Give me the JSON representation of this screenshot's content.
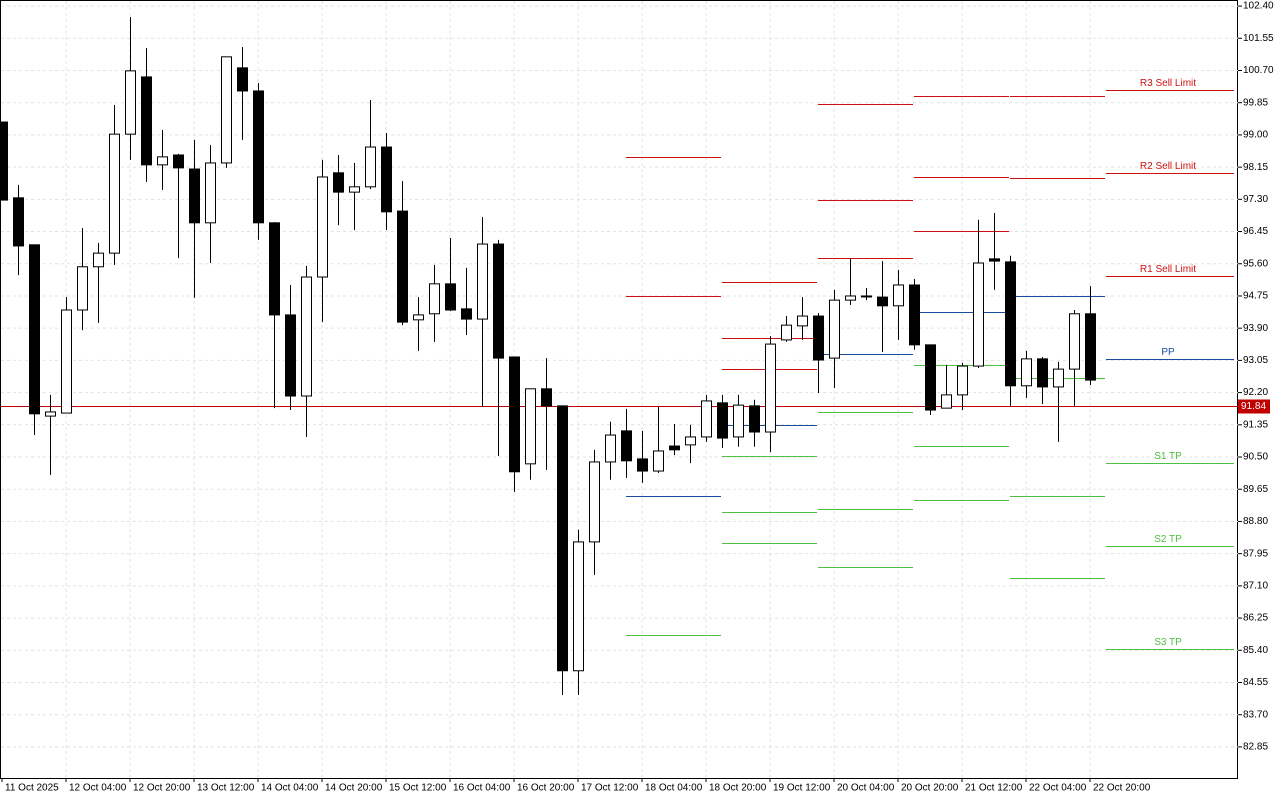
{
  "chart_data": {
    "type": "candlestick",
    "categories": [
      "11 Oct 2025",
      null,
      null,
      null,
      "12 Oct 04:00",
      null,
      null,
      null,
      "12 Oct 20:00",
      null,
      null,
      null,
      "13 Oct 12:00",
      null,
      null,
      null,
      "14 Oct 04:00",
      null,
      null,
      null,
      "14 Oct 20:00",
      null,
      null,
      null,
      "15 Oct 12:00",
      null,
      null,
      null,
      "16 Oct 04:00",
      null,
      null,
      null,
      "16 Oct 20:00",
      null,
      null,
      null,
      "17 Oct 12:00",
      null,
      null,
      null,
      "18 Oct 04:00",
      null,
      null,
      null,
      "18 Oct 20:00",
      null,
      null,
      null,
      "19 Oct 12:00",
      null,
      null,
      null,
      "20 Oct 04:00",
      null,
      null,
      null,
      "20 Oct 20:00",
      null,
      null,
      null,
      "21 Oct 12:00",
      null,
      null,
      null,
      "22 Oct 04:00",
      null,
      null,
      null,
      "22 Oct 20:00"
    ],
    "open": [
      99.34,
      97.34,
      96.1,
      91.58,
      91.66,
      94.38,
      95.52,
      95.88,
      99.02,
      100.53,
      98.21,
      98.47,
      98.1,
      96.68,
      98.26,
      100.77,
      100.16,
      96.68,
      94.25,
      92.11,
      95.25,
      98.0,
      97.49,
      97.63,
      98.68,
      96.99,
      94.12,
      94.28,
      95.07,
      94.41,
      94.14,
      96.12,
      93.14,
      90.32,
      92.3,
      91.85,
      84.86,
      88.26,
      90.37,
      91.19,
      90.45,
      90.13,
      90.79,
      90.82,
      91.03,
      91.93,
      91.03,
      91.85,
      91.16,
      93.59,
      93.96,
      94.22,
      93.11,
      94.64,
      94.75,
      94.72,
      94.49,
      95.04,
      93.46,
      91.79,
      92.14,
      92.9,
      95.73,
      95.65,
      92.38,
      93.09,
      92.35,
      92.82,
      94.28
    ],
    "high": [
      99.34,
      97.68,
      96.1,
      92.14,
      94.72,
      96.54,
      96.15,
      99.79,
      102.11,
      101.29,
      99.13,
      98.5,
      98.87,
      98.73,
      101.06,
      101.32,
      100.37,
      96.7,
      95.04,
      95.54,
      98.34,
      98.47,
      98.26,
      99.92,
      99.05,
      97.78,
      94.72,
      95.57,
      96.28,
      95.49,
      96.83,
      96.23,
      93.14,
      92.3,
      93.11,
      91.85,
      88.58,
      90.69,
      91.43,
      91.77,
      91.19,
      91.82,
      91.37,
      91.35,
      92.14,
      92.14,
      92.14,
      92.01,
      93.69,
      94.22,
      94.72,
      94.3,
      94.91,
      95.75,
      94.96,
      95.67,
      95.44,
      95.2,
      93.46,
      92.93,
      92.98,
      96.76,
      96.94,
      95.81,
      93.3,
      93.14,
      93.01,
      94.38,
      95.01
    ],
    "low": [
      97.28,
      95.3,
      91.08,
      90.03,
      91.66,
      93.85,
      94.04,
      95.57,
      98.34,
      97.76,
      97.55,
      95.75,
      94.7,
      95.62,
      98.13,
      98.87,
      96.23,
      91.79,
      91.74,
      91.03,
      94.06,
      96.62,
      96.49,
      97.57,
      96.49,
      93.98,
      93.3,
      93.54,
      94.35,
      93.72,
      91.82,
      90.53,
      89.58,
      89.9,
      90.16,
      84.22,
      84.22,
      87.39,
      89.9,
      89.95,
      89.82,
      90.08,
      90.55,
      90.34,
      90.9,
      90.74,
      90.77,
      90.77,
      90.63,
      93.54,
      93.59,
      92.19,
      92.32,
      94.51,
      94.64,
      93.27,
      93.59,
      93.33,
      91.61,
      91.79,
      91.74,
      92.85,
      94.91,
      91.85,
      92.06,
      91.9,
      90.9,
      91.85,
      92.4
    ],
    "close": [
      97.28,
      96.07,
      91.64,
      91.69,
      94.38,
      95.52,
      95.88,
      99.02,
      100.69,
      98.21,
      98.42,
      98.13,
      96.68,
      98.26,
      101.06,
      100.16,
      96.68,
      94.25,
      92.11,
      95.25,
      97.89,
      97.49,
      97.63,
      98.68,
      96.97,
      94.06,
      94.25,
      95.07,
      94.38,
      94.14,
      96.12,
      93.11,
      90.11,
      92.3,
      91.85,
      84.86,
      88.26,
      90.37,
      91.08,
      90.4,
      90.13,
      90.66,
      90.69,
      91.03,
      91.98,
      91.0,
      91.87,
      91.16,
      93.48,
      93.98,
      94.22,
      93.06,
      94.64,
      94.75,
      94.75,
      94.49,
      95.04,
      93.46,
      91.74,
      92.14,
      92.9,
      95.62,
      95.67,
      92.38,
      93.09,
      92.35,
      92.82,
      94.28,
      92.53
    ],
    "up_color": "#ffffff",
    "down_color": "#000000",
    "ylim": [
      82.03,
      102.56
    ],
    "yticks": [
      {
        "value": 102.4,
        "label": "102.40"
      },
      101.55,
      {
        "value": 100.7,
        "label": "100.70"
      },
      99.85,
      {
        "value": 99.0,
        "label": "99.00"
      },
      98.15,
      {
        "value": 97.3,
        "label": "97.30"
      },
      96.45,
      {
        "value": 95.6,
        "label": "95.60"
      },
      94.75,
      {
        "value": 93.9,
        "label": "93.90"
      },
      93.05,
      {
        "value": 92.2,
        "label": "92.20"
      },
      91.35,
      {
        "value": 90.5,
        "label": "90.50"
      },
      89.65,
      {
        "value": 88.8,
        "label": "88.80"
      },
      87.95,
      {
        "value": 87.1,
        "label": "87.10"
      },
      86.25,
      {
        "value": 85.4,
        "label": "85.40"
      },
      84.55,
      {
        "value": 83.7,
        "label": "83.70"
      },
      82.85
    ],
    "grid": true,
    "current_price": 91.84,
    "current_price_color": "#c00000",
    "pivots": {
      "names": [
        "R3 Sell Limit",
        "R2 Sell Limit",
        "R1 Sell Limit",
        "PP",
        "S1 TP",
        "S2 TP",
        "S3 TP"
      ],
      "colors": [
        "#d01010",
        "#d01010",
        "#d01010",
        "#1a4fa0",
        "#4cc040",
        "#4cc040",
        "#4cc040"
      ],
      "periods": [
        {
          "start": 39,
          "levels": [
            null,
            98.42,
            94.75,
            89.47,
            85.81,
            null,
            null
          ]
        },
        {
          "start": 45,
          "levels": [
            95.12,
            93.64,
            92.82,
            91.35,
            90.53,
            89.05,
            88.23
          ]
        },
        {
          "start": 51,
          "levels": [
            99.82,
            97.28,
            95.75,
            93.22,
            91.69,
            89.13,
            87.6
          ]
        },
        {
          "start": 57,
          "levels": [
            100.03,
            97.89,
            96.46,
            94.33,
            92.93,
            90.79,
            89.37
          ]
        },
        {
          "start": 63,
          "levels": [
            100.03,
            97.86,
            null,
            94.75,
            92.59,
            89.47,
            87.31
          ]
        },
        {
          "start": 69,
          "levels": [
            100.19,
            98.0,
            95.28,
            93.09,
            90.34,
            88.15,
            85.44
          ]
        }
      ]
    }
  }
}
